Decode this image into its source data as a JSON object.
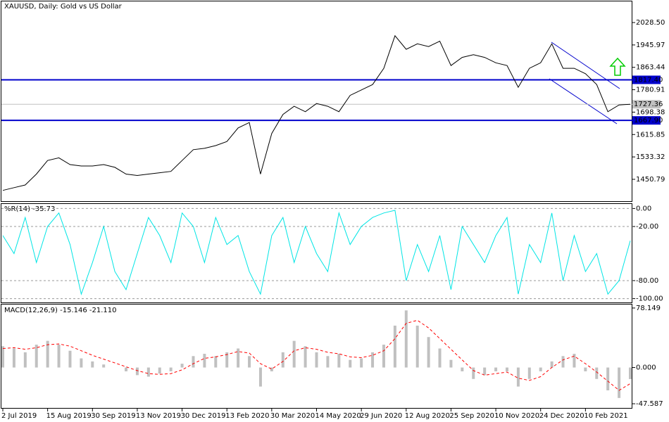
{
  "chart_data": [
    {
      "type": "line",
      "title": "XAUUSD, Daily:  Gold vs US Dollar",
      "color": "#000000",
      "values": [
        1410,
        1420,
        1430,
        1470,
        1520,
        1530,
        1505,
        1500,
        1500,
        1505,
        1495,
        1470,
        1465,
        1470,
        1475,
        1480,
        1520,
        1560,
        1565,
        1575,
        1590,
        1640,
        1660,
        1470,
        1620,
        1690,
        1720,
        1700,
        1730,
        1720,
        1700,
        1760,
        1780,
        1800,
        1860,
        1980,
        1930,
        1950,
        1940,
        1960,
        1870,
        1900,
        1910,
        1900,
        1880,
        1870,
        1790,
        1860,
        1880,
        1950,
        1860,
        1860,
        1840,
        1800,
        1700,
        1725,
        1727.36
      ],
      "ylim": [
        1370.3,
        2106.4
      ],
      "yticks": [
        {
          "value": 2028.5,
          "label": "2028.50"
        },
        1945.97,
        1863.44,
        1780.91,
        1698.38,
        1615.85,
        1533.32,
        1450.79
      ],
      "levels": [
        {
          "value": 1817.4,
          "label": "1817.40",
          "color": "#0000cc"
        },
        {
          "value": 1667.9,
          "label": "1667.90",
          "color": "#0000cc"
        }
      ],
      "last": {
        "value": 1727.36,
        "label": "1727.36",
        "color": "#c0c0c0"
      }
    },
    {
      "type": "line",
      "title": "%R(14) -35.73",
      "color": "#00e5e5",
      "values": [
        -30,
        -50,
        -10,
        -60,
        -20,
        -5,
        -40,
        -95,
        -60,
        -20,
        -70,
        -90,
        -50,
        -10,
        -30,
        -60,
        -5,
        -20,
        -60,
        -10,
        -40,
        -30,
        -70,
        -95,
        -30,
        -10,
        -60,
        -20,
        -50,
        -70,
        -5,
        -40,
        -20,
        -10,
        -5,
        -2,
        -80,
        -40,
        -70,
        -30,
        -90,
        -20,
        -40,
        -60,
        -30,
        -10,
        -95,
        -40,
        -60,
        -5,
        -80,
        -30,
        -70,
        -50,
        -95,
        -80,
        -35.73
      ],
      "ylim": [
        -105,
        5
      ],
      "yticks": [
        {
          "value": 0,
          "label": "0.00"
        },
        {
          "value": -20,
          "label": "-20.00"
        },
        {
          "value": -80,
          "label": "-80.00"
        },
        {
          "value": -100,
          "label": "-100.00"
        }
      ],
      "grid": true
    },
    {
      "type": "bar",
      "title": "MACD(12,26,9) -15.146 -21.110",
      "categories": [
        "2 Jul 2019",
        null,
        null,
        null,
        "15 Aug 2019",
        null,
        null,
        null,
        "30 Sep 2019",
        null,
        null,
        null,
        "13 Nov 2019",
        null,
        null,
        null,
        "30 Dec 2019",
        null,
        null,
        null,
        "13 Feb 2020",
        null,
        null,
        null,
        "30 Mar 2020",
        null,
        null,
        null,
        "14 May 2020",
        null,
        null,
        null,
        "29 Jun 2020",
        null,
        null,
        null,
        "12 Aug 2020",
        null,
        null,
        null,
        "25 Sep 2020",
        null,
        null,
        null,
        "10 Nov 2020",
        null,
        null,
        null,
        "24 Dec 2020",
        null,
        null,
        null,
        "10 Feb 2021",
        null,
        null,
        null,
        null
      ],
      "series": [
        {
          "color": "#c0c0c0",
          "values": [
            28,
            25,
            20,
            30,
            35,
            30,
            22,
            12,
            8,
            4,
            0,
            -5,
            -10,
            -12,
            -8,
            -5,
            5,
            15,
            18,
            15,
            20,
            25,
            15,
            -25,
            -5,
            20,
            35,
            28,
            20,
            15,
            18,
            10,
            12,
            20,
            30,
            55,
            75,
            55,
            40,
            25,
            10,
            -5,
            -15,
            -10,
            -5,
            -5,
            -25,
            -15,
            -5,
            8,
            15,
            18,
            -5,
            -15,
            -30,
            -40,
            -15.146
          ]
        },
        {
          "type": "line",
          "color": "#ff0000",
          "values": [
            25,
            26,
            24,
            26,
            30,
            31,
            28,
            22,
            16,
            11,
            6,
            1,
            -4,
            -8,
            -9,
            -8,
            -3,
            5,
            12,
            14,
            17,
            21,
            19,
            5,
            -2,
            8,
            22,
            26,
            24,
            20,
            18,
            14,
            13,
            16,
            22,
            38,
            58,
            62,
            52,
            38,
            24,
            10,
            -4,
            -10,
            -8,
            -6,
            -14,
            -17,
            -12,
            0,
            10,
            15,
            5,
            -6,
            -18,
            -30,
            -21.11
          ]
        }
      ],
      "ylim": [
        -54.0,
        82.7
      ],
      "yticks": [
        78.149,
        {
          "value": 0,
          "label": "0.000"
        },
        -47.587
      ]
    }
  ]
}
